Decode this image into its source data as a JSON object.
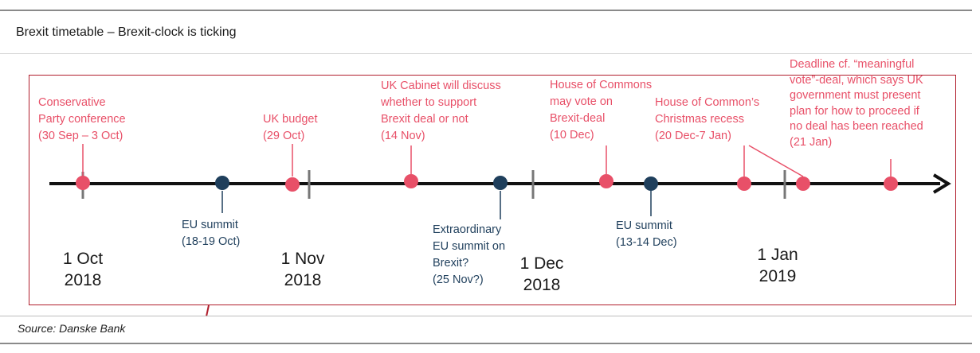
{
  "header": {
    "title": "Brexit timetable – Brexit-clock is ticking"
  },
  "colors": {
    "event_red": "#e85068",
    "event_navy": "#1f3f5c",
    "frame": "#b01e2c",
    "axis": "#111111"
  },
  "events_above": [
    {
      "lines": [
        "Conservative",
        "Party conference",
        "(30 Sep – 3 Oct)"
      ]
    },
    {
      "lines": [
        "UK budget",
        "(29 Oct)"
      ]
    },
    {
      "lines": [
        "UK Cabinet will discuss",
        "whether to support",
        "Brexit deal or not",
        "(14 Nov)"
      ]
    },
    {
      "lines": [
        "House of Commons",
        "may vote on",
        "Brexit-deal",
        "(10 Dec)"
      ]
    },
    {
      "lines": [
        "House of Common’s",
        "Christmas recess",
        "(20 Dec-7 Jan)"
      ]
    },
    {
      "lines": [
        "Deadline cf. “meaningful",
        "vote”-deal, which says UK",
        "government must present",
        "plan for how to proceed if",
        "no deal has been reached",
        "(21 Jan)"
      ]
    }
  ],
  "events_below": [
    {
      "lines": [
        "EU summit",
        "(18-19 Oct)"
      ]
    },
    {
      "lines": [
        "Extraordinary",
        "EU summit on",
        "Brexit?",
        "(25 Nov?)"
      ]
    },
    {
      "lines": [
        "EU summit",
        "(13-14 Dec)"
      ]
    }
  ],
  "month_labels": [
    {
      "lines": [
        "1 Oct",
        "2018"
      ]
    },
    {
      "lines": [
        "1 Nov",
        "2018"
      ]
    },
    {
      "lines": [
        "1 Dec",
        "2018"
      ]
    },
    {
      "lines": [
        "1 Jan",
        "2019"
      ]
    }
  ],
  "source": "Source: Danske Bank"
}
